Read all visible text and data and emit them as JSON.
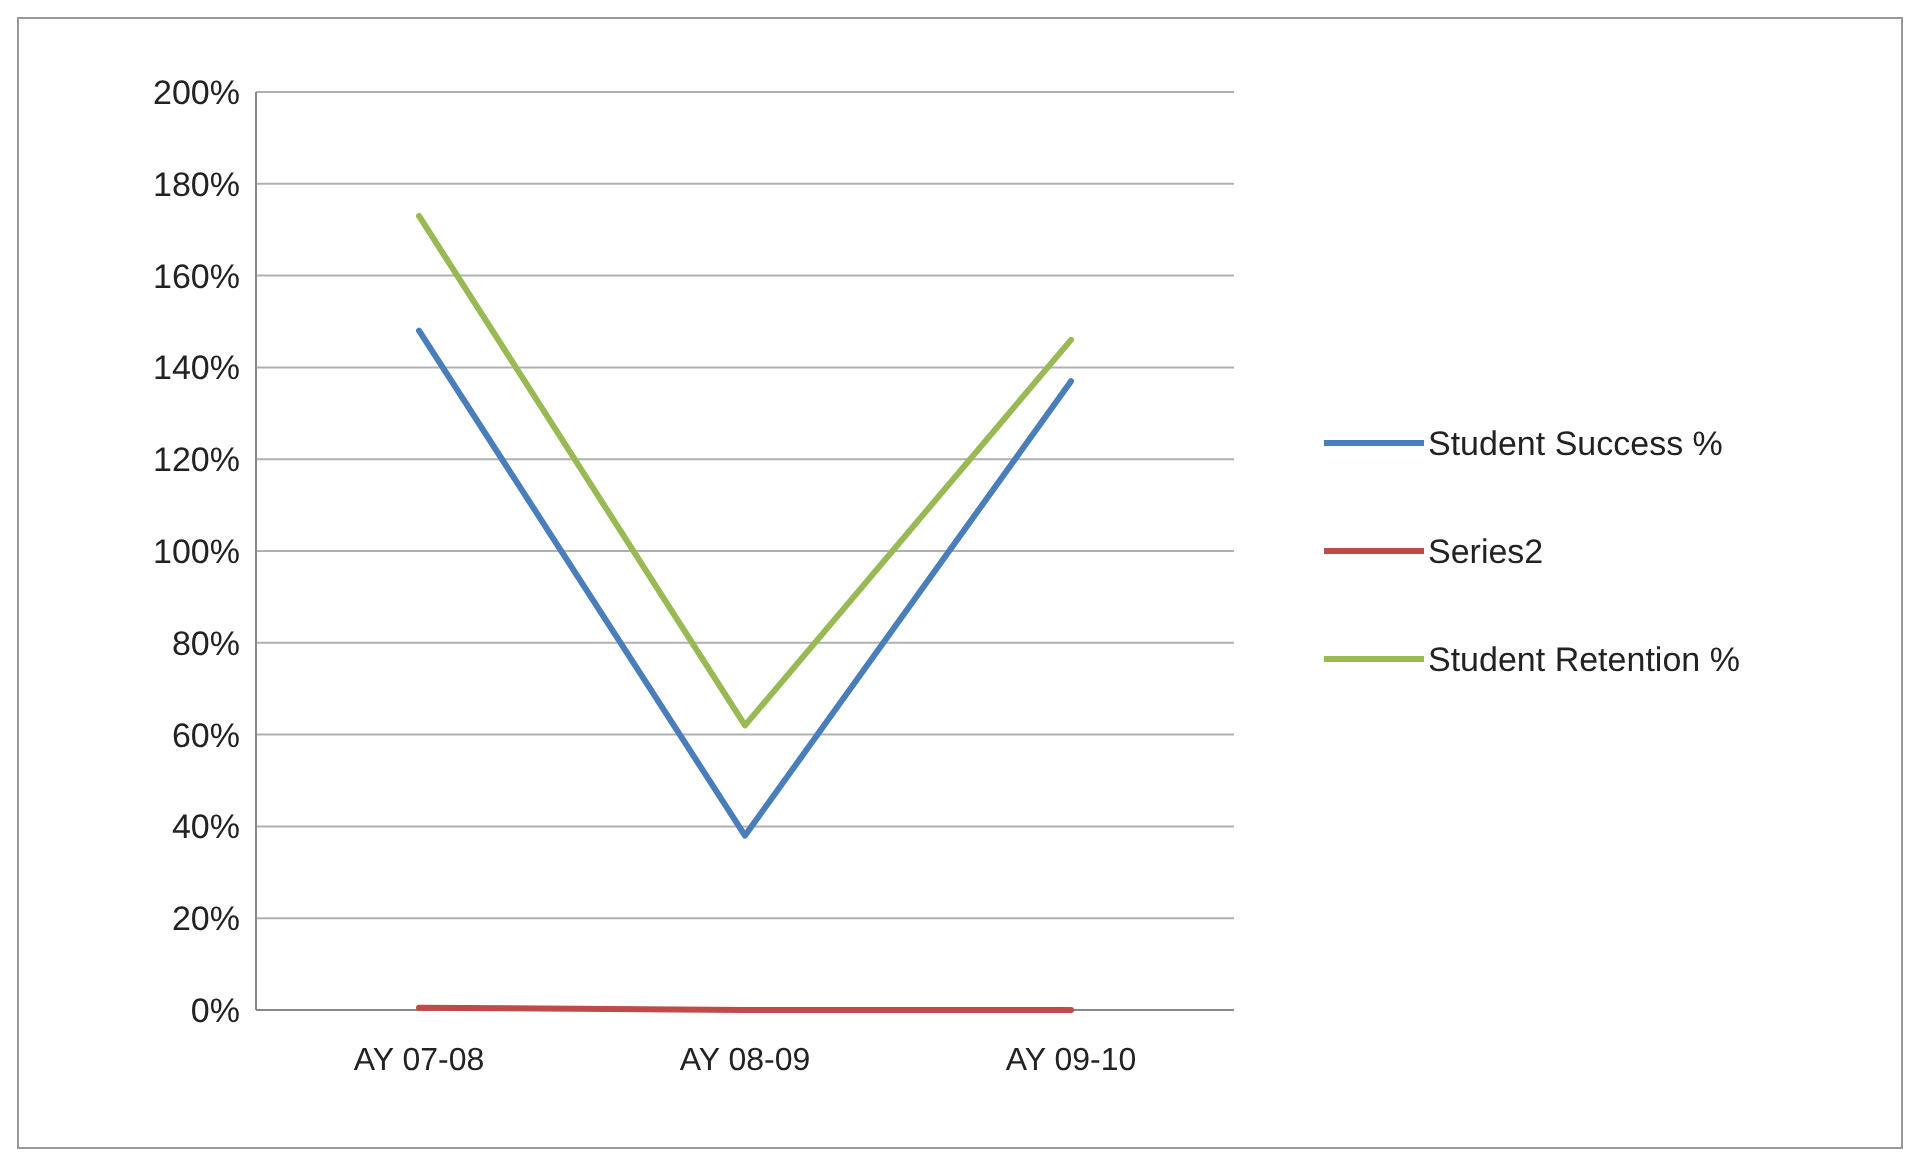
{
  "chart_data": {
    "type": "line",
    "categories": [
      "AY 07-08",
      "AY 08-09",
      "AY 09-10"
    ],
    "series": [
      {
        "name": "Student Success %",
        "color": "#4a7ebb",
        "values": [
          148,
          38,
          137
        ]
      },
      {
        "name": "Series2",
        "color": "#be4b48",
        "values": [
          0.5,
          0,
          0
        ]
      },
      {
        "name": "Student Retention %",
        "color": "#98b954",
        "values": [
          173,
          62,
          146
        ]
      }
    ],
    "ylim": [
      0,
      200
    ],
    "yticks": [
      {
        "value": 0,
        "label": "0%"
      },
      {
        "value": 20,
        "label": "20%"
      },
      {
        "value": 40,
        "label": "40%"
      },
      {
        "value": 60,
        "label": "60%"
      },
      {
        "value": 80,
        "label": "80%"
      },
      {
        "value": 100,
        "label": "100%"
      },
      {
        "value": 120,
        "label": "120%"
      },
      {
        "value": 140,
        "label": "140%"
      },
      {
        "value": 160,
        "label": "160%"
      },
      {
        "value": 180,
        "label": "180%"
      },
      {
        "value": 200,
        "label": "200%"
      }
    ],
    "grid": "y",
    "legend": "right",
    "marker": "none",
    "line_style": "solid"
  }
}
